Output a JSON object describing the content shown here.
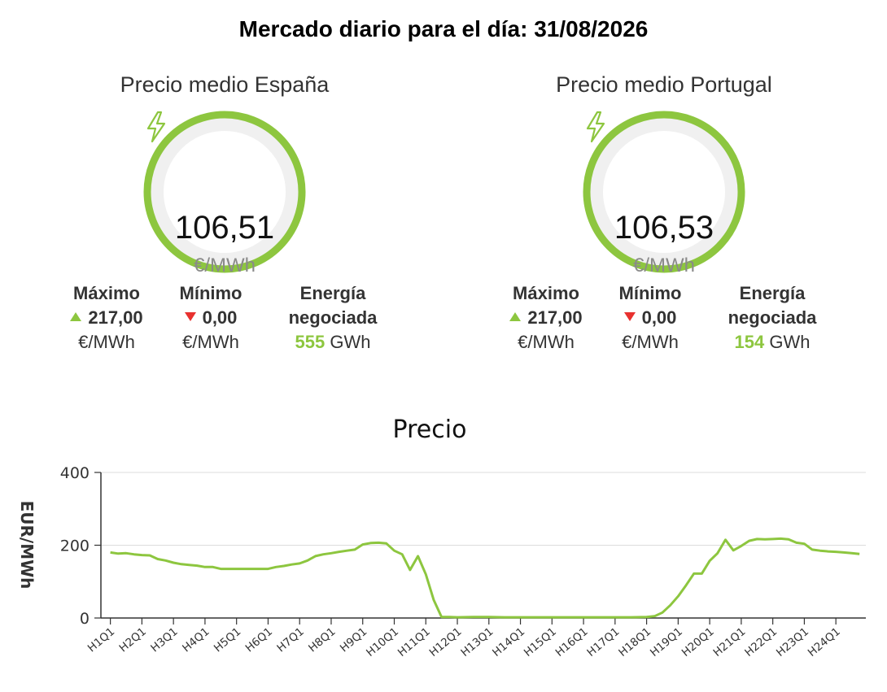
{
  "header": {
    "title": "Mercado diario para el día: 31/08/2026"
  },
  "colors": {
    "accent_green": "#8dc63f",
    "down_red": "#e8312f",
    "ring_track": "#f0f0f0"
  },
  "spain": {
    "title": "Precio medio España",
    "icon": "lightning-icon",
    "price": "106,51",
    "unit": "€/MWh",
    "max_label": "Máximo",
    "max_value": "217,00",
    "max_unit": "€/MWh",
    "min_label": "Mínimo",
    "min_value": "0,00",
    "min_unit": "€/MWh",
    "energy_label_1": "Energía",
    "energy_label_2": "negociada",
    "energy_value": "555",
    "energy_unit": "GWh"
  },
  "portugal": {
    "title": "Precio medio Portugal",
    "icon": "lightning-icon",
    "price": "106,53",
    "unit": "€/MWh",
    "max_label": "Máximo",
    "max_value": "217,00",
    "max_unit": "€/MWh",
    "min_label": "Mínimo",
    "min_value": "0,00",
    "min_unit": "€/MWh",
    "energy_label_1": "Energía",
    "energy_label_2": "negociada",
    "energy_value": "154",
    "energy_unit": "GWh"
  },
  "chart_data": {
    "type": "line",
    "title": "Precio",
    "xlabel": "",
    "ylabel": "EUR/MWh",
    "ylim": [
      0,
      400
    ],
    "yticks": [
      0,
      200,
      400
    ],
    "grid": true,
    "legend": "none",
    "xtick_labels": [
      "H1Q1",
      "H2Q1",
      "H3Q1",
      "H4Q1",
      "H5Q1",
      "H6Q1",
      "H7Q1",
      "H8Q1",
      "H9Q1",
      "H10Q1",
      "H11Q1",
      "H12Q1",
      "H13Q1",
      "H14Q1",
      "H15Q1",
      "H16Q1",
      "H17Q1",
      "H18Q1",
      "H19Q1",
      "H20Q1",
      "H21Q1",
      "H22Q1",
      "H23Q1",
      "H24Q1"
    ],
    "series": [
      {
        "color": "#8dc63f",
        "x": [
          1,
          1.25,
          1.5,
          1.75,
          2,
          2.25,
          2.5,
          2.75,
          3,
          3.25,
          3.5,
          3.75,
          4,
          4.25,
          4.5,
          4.75,
          5,
          5.25,
          5.5,
          5.75,
          6,
          6.25,
          6.5,
          6.75,
          7,
          7.25,
          7.5,
          7.75,
          8,
          8.25,
          8.5,
          8.75,
          9,
          9.25,
          9.5,
          9.75,
          10,
          10.25,
          10.5,
          10.75,
          11,
          11.25,
          11.5,
          11.75,
          12,
          12.5,
          13,
          13.5,
          14,
          14.5,
          15,
          15.5,
          16,
          16.5,
          17,
          17.5,
          18,
          18.25,
          18.5,
          18.75,
          19,
          19.25,
          19.5,
          19.75,
          20,
          20.25,
          20.5,
          20.75,
          21,
          21.25,
          21.5,
          21.75,
          22,
          22.25,
          22.5,
          22.75,
          23,
          23.25,
          23.5,
          23.75,
          24,
          24.25,
          24.5,
          24.75
        ],
        "values": [
          180,
          177,
          178,
          175,
          173,
          172,
          162,
          158,
          152,
          148,
          146,
          144,
          140,
          140,
          135,
          135,
          135,
          135,
          135,
          135,
          135,
          140,
          143,
          147,
          150,
          158,
          170,
          175,
          178,
          182,
          185,
          188,
          202,
          206,
          207,
          205,
          185,
          175,
          132,
          170,
          120,
          50,
          3,
          3,
          2,
          3,
          3,
          2,
          2,
          2,
          2,
          2,
          2,
          2,
          2,
          2,
          3,
          5,
          15,
          35,
          60,
          90,
          122,
          122,
          157,
          178,
          215,
          186,
          198,
          212,
          217,
          216,
          217,
          218,
          216,
          207,
          204,
          188,
          185,
          183,
          182,
          180,
          178,
          176
        ]
      }
    ]
  }
}
